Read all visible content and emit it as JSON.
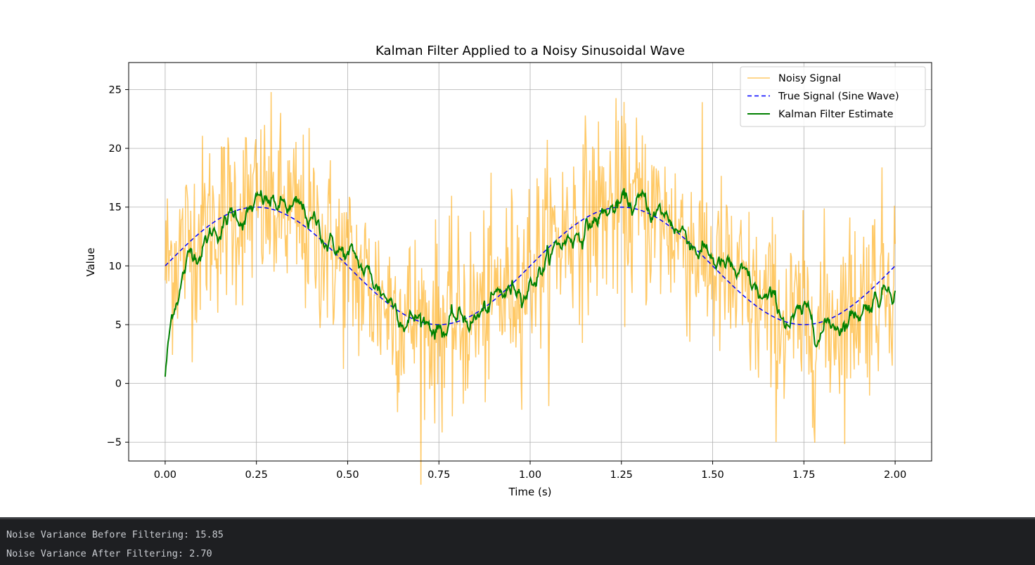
{
  "chart_data": {
    "type": "line",
    "title": "Kalman Filter Applied to a Noisy Sinusoidal Wave",
    "xlabel": "Time (s)",
    "ylabel": "Value",
    "xlim": [
      -0.1,
      2.1
    ],
    "ylim": [
      -6.6,
      27.3
    ],
    "x_ticks": [
      "0.00",
      "0.25",
      "0.50",
      "0.75",
      "1.00",
      "1.25",
      "1.50",
      "1.75",
      "2.00"
    ],
    "x_tick_values": [
      0,
      0.25,
      0.5,
      0.75,
      1.0,
      1.25,
      1.5,
      1.75,
      2.0
    ],
    "y_ticks": [
      "−5",
      "0",
      "5",
      "10",
      "15",
      "20",
      "25"
    ],
    "y_tick_values": [
      -5,
      0,
      5,
      10,
      15,
      20,
      25
    ],
    "grid": true,
    "legend_position": "top-right",
    "true_signal": {
      "function": "10 + 5*sin(2*pi*t)",
      "t_range": [
        0,
        2
      ],
      "amplitude": 5,
      "offset": 10,
      "frequency_hz": 1
    },
    "noise_variance_estimate": 15.85,
    "series": [
      {
        "name": "Noisy Signal",
        "color": "#ffa500",
        "opacity": 0.6,
        "style": "solid"
      },
      {
        "name": "True Signal (Sine Wave)",
        "color": "#0000ff",
        "style": "dashed"
      },
      {
        "name": "Kalman Filter Estimate",
        "color": "#008000",
        "style": "solid"
      }
    ]
  },
  "console": {
    "lines": [
      "Noise Variance Before Filtering: 15.85",
      "Noise Variance After Filtering: 2.70"
    ]
  }
}
